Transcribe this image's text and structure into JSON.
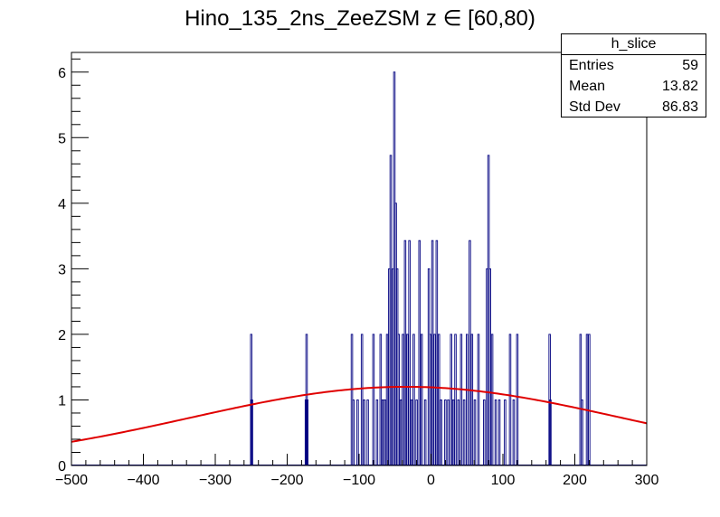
{
  "chart_data": {
    "type": "histogram",
    "title": "Hino_135_2ns_ZeeZSM z  ∈ [60,80)",
    "xlim": [
      -500,
      300
    ],
    "ylim": [
      0,
      6.3
    ],
    "xticks": [
      -500,
      -400,
      -300,
      -200,
      -100,
      0,
      100,
      200,
      300
    ],
    "xtick_labels": [
      "−500",
      "−400",
      "−300",
      "−200",
      "−100",
      "0",
      "100",
      "200",
      "300"
    ],
    "yticks": [
      0,
      1,
      2,
      3,
      4,
      5,
      6
    ],
    "ytick_labels": [
      "0",
      "1",
      "2",
      "3",
      "4",
      "5",
      "6"
    ],
    "hist_color": "#000080",
    "fit_color": "#e00000",
    "bars": [
      {
        "x": -250,
        "y": 2
      },
      {
        "x": -249,
        "y": 1
      },
      {
        "x": -174,
        "y": 1
      },
      {
        "x": -173,
        "y": 2
      },
      {
        "x": -172,
        "y": 1
      },
      {
        "x": -110,
        "y": 2
      },
      {
        "x": -108,
        "y": 1
      },
      {
        "x": -102,
        "y": 1
      },
      {
        "x": -96,
        "y": 2
      },
      {
        "x": -93,
        "y": 1
      },
      {
        "x": -88,
        "y": 1
      },
      {
        "x": -80,
        "y": 2
      },
      {
        "x": -75,
        "y": 1
      },
      {
        "x": -70,
        "y": 2
      },
      {
        "x": -67,
        "y": 1
      },
      {
        "x": -64,
        "y": 1
      },
      {
        "x": -61,
        "y": 2
      },
      {
        "x": -58,
        "y": 3
      },
      {
        "x": -56,
        "y": 4.73
      },
      {
        "x": -53,
        "y": 3
      },
      {
        "x": -51,
        "y": 6
      },
      {
        "x": -49,
        "y": 4
      },
      {
        "x": -47,
        "y": 3
      },
      {
        "x": -45,
        "y": 2
      },
      {
        "x": -42,
        "y": 1
      },
      {
        "x": -39,
        "y": 2
      },
      {
        "x": -36,
        "y": 3.43
      },
      {
        "x": -33,
        "y": 2
      },
      {
        "x": -30,
        "y": 3.43
      },
      {
        "x": -27,
        "y": 1
      },
      {
        "x": -24,
        "y": 2
      },
      {
        "x": -20,
        "y": 1
      },
      {
        "x": -16,
        "y": 3.43
      },
      {
        "x": -13,
        "y": 2
      },
      {
        "x": -8,
        "y": 1
      },
      {
        "x": -3,
        "y": 3
      },
      {
        "x": -1,
        "y": 2
      },
      {
        "x": 2,
        "y": 3.43
      },
      {
        "x": 5,
        "y": 2
      },
      {
        "x": 8,
        "y": 3.43
      },
      {
        "x": 11,
        "y": 2
      },
      {
        "x": 14,
        "y": 1
      },
      {
        "x": 20,
        "y": 1
      },
      {
        "x": 24,
        "y": 1
      },
      {
        "x": 28,
        "y": 2
      },
      {
        "x": 31,
        "y": 1
      },
      {
        "x": 34,
        "y": 2
      },
      {
        "x": 38,
        "y": 1
      },
      {
        "x": 42,
        "y": 2
      },
      {
        "x": 46,
        "y": 1
      },
      {
        "x": 50,
        "y": 2
      },
      {
        "x": 54,
        "y": 3.43
      },
      {
        "x": 57,
        "y": 2
      },
      {
        "x": 61,
        "y": 1
      },
      {
        "x": 66,
        "y": 2
      },
      {
        "x": 74,
        "y": 1
      },
      {
        "x": 78,
        "y": 3
      },
      {
        "x": 80,
        "y": 4.73
      },
      {
        "x": 82,
        "y": 3
      },
      {
        "x": 85,
        "y": 2
      },
      {
        "x": 90,
        "y": 1
      },
      {
        "x": 95,
        "y": 1
      },
      {
        "x": 103,
        "y": 1
      },
      {
        "x": 110,
        "y": 2
      },
      {
        "x": 115,
        "y": 1
      },
      {
        "x": 120,
        "y": 2
      },
      {
        "x": 165,
        "y": 2
      },
      {
        "x": 166,
        "y": 1
      },
      {
        "x": 208,
        "y": 2
      },
      {
        "x": 210,
        "y": 1
      },
      {
        "x": 217,
        "y": 2
      },
      {
        "x": 220,
        "y": 2
      }
    ],
    "fit_curve": {
      "type": "gaussian",
      "constant": 1.2,
      "mean": -35,
      "sigma": 300
    },
    "stats_box": {
      "name": "h_slice",
      "rows": [
        {
          "label": "Entries",
          "value": "59"
        },
        {
          "label": "Mean",
          "value": "13.82"
        },
        {
          "label": "Std Dev",
          "value": "86.83"
        }
      ]
    }
  }
}
